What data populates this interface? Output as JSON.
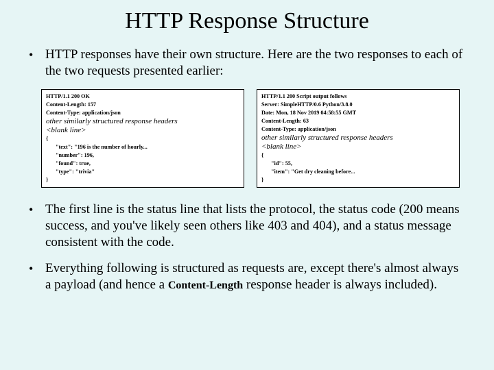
{
  "colors": {
    "background": "#e6f5f5",
    "codebox_bg": "#ffffff",
    "codebox_border": "#000000",
    "text": "#000000"
  },
  "typography": {
    "title_fontsize": 34,
    "body_fontsize": 19,
    "code_fontsize": 8.2,
    "italic_fontsize": 11,
    "font_family": "Times New Roman"
  },
  "title": "HTTP Response Structure",
  "bullet1": "HTTP responses have their own structure.  Here are the two responses to each of the two requests presented earlier:",
  "box_left": {
    "line1": "HTTP/1.1 200 OK",
    "line2": "Content-Length: 157",
    "line3": "Content-Type: application/json",
    "italic1": "other similarly structured response headers",
    "italic2": "<blank line>",
    "brace_open": "{",
    "l1": "\"text\": \"196 is the number of hourly...",
    "l2": "\"number\": 196,",
    "l3": "\"found\": true,",
    "l4": "\"type\": \"trivia\"",
    "brace_close": "}"
  },
  "box_right": {
    "line1": "HTTP/1.1 200 Script output follows",
    "line2": "Server: SimpleHTTP/0.6 Python/3.8.0",
    "line3": "Date: Mon, 18 Nov 2019 04:58:55 GMT",
    "line4": "Content-Length: 63",
    "line5": "Content-Type: application/json",
    "italic1": "other similarly structured response headers",
    "italic2": "<blank line>",
    "brace_open": "{",
    "l1": "\"id\": 55,",
    "l2": "\"item\": \"Get dry cleaning before...",
    "brace_close": "}"
  },
  "bullet2": "The first line is the status line that lists the protocol, the status code (200 means success, and you've likely seen others like 403 and 404), and a status message consistent with the code.",
  "bullet3_a": "Everything following is structured as requests are, except there's almost always a payload (and hence a ",
  "bullet3_code": "Content-Length",
  "bullet3_b": " response header is always included)."
}
